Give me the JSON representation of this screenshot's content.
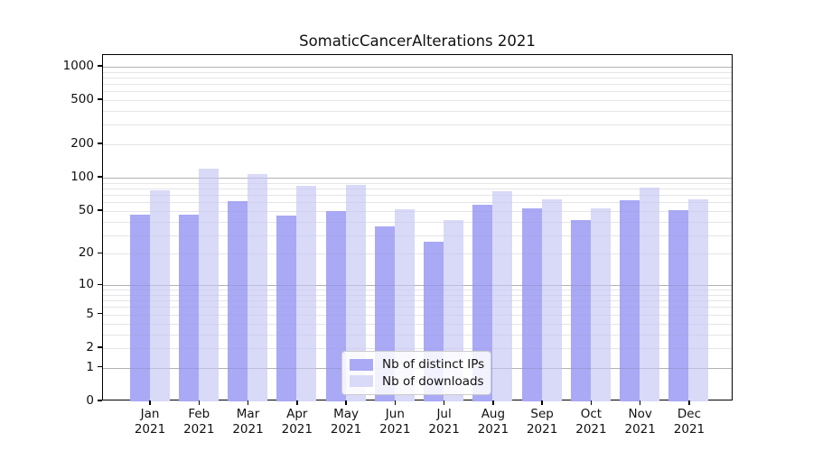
{
  "chart_data": {
    "type": "bar",
    "title": "SomaticCancerAlterations 2021",
    "yscale": "log1p",
    "ylim": [
      0,
      1272
    ],
    "grid": "on",
    "categories": [
      "Jan 2021",
      "Feb 2021",
      "Mar 2021",
      "Apr 2021",
      "May 2021",
      "Jun 2021",
      "Jul 2021",
      "Aug 2021",
      "Sep 2021",
      "Oct 2021",
      "Nov 2021",
      "Dec 2021"
    ],
    "x_ticks": [
      {
        "month": "Jan",
        "year": "2021"
      },
      {
        "month": "Feb",
        "year": "2021"
      },
      {
        "month": "Mar",
        "year": "2021"
      },
      {
        "month": "Apr",
        "year": "2021"
      },
      {
        "month": "May",
        "year": "2021"
      },
      {
        "month": "Jun",
        "year": "2021"
      },
      {
        "month": "Jul",
        "year": "2021"
      },
      {
        "month": "Aug",
        "year": "2021"
      },
      {
        "month": "Sep",
        "year": "2021"
      },
      {
        "month": "Oct",
        "year": "2021"
      },
      {
        "month": "Nov",
        "year": "2021"
      },
      {
        "month": "Dec",
        "year": "2021"
      }
    ],
    "series": [
      {
        "name": "Nb of distinct IPs",
        "color": "#a9a9f5",
        "values": [
          46,
          46,
          61,
          45,
          50,
          36,
          26,
          57,
          53,
          41,
          62,
          51
        ]
      },
      {
        "name": "Nb of downloads",
        "color": "#d9d9f8",
        "values": [
          77,
          120,
          108,
          84,
          87,
          52,
          41,
          76,
          64,
          53,
          81,
          64
        ]
      }
    ],
    "y_ticks": [
      {
        "value": 1000,
        "label": "1000"
      },
      {
        "value": 500,
        "label": "500"
      },
      {
        "value": 200,
        "label": "200"
      },
      {
        "value": 100,
        "label": "100"
      },
      {
        "value": 50,
        "label": "50"
      },
      {
        "value": 20,
        "label": "20"
      },
      {
        "value": 10,
        "label": "10"
      },
      {
        "value": 5,
        "label": "5"
      },
      {
        "value": 2,
        "label": "2"
      },
      {
        "value": 1,
        "label": "1"
      },
      {
        "value": 0,
        "label": "0"
      }
    ],
    "major_grid_values": [
      1,
      10,
      100,
      1000
    ],
    "minor_grid_values": [
      2,
      3,
      4,
      5,
      6,
      7,
      8,
      9,
      20,
      30,
      40,
      50,
      60,
      70,
      80,
      90,
      200,
      300,
      400,
      500,
      600,
      700,
      800,
      900
    ],
    "legend": {
      "location": "lower center"
    }
  }
}
